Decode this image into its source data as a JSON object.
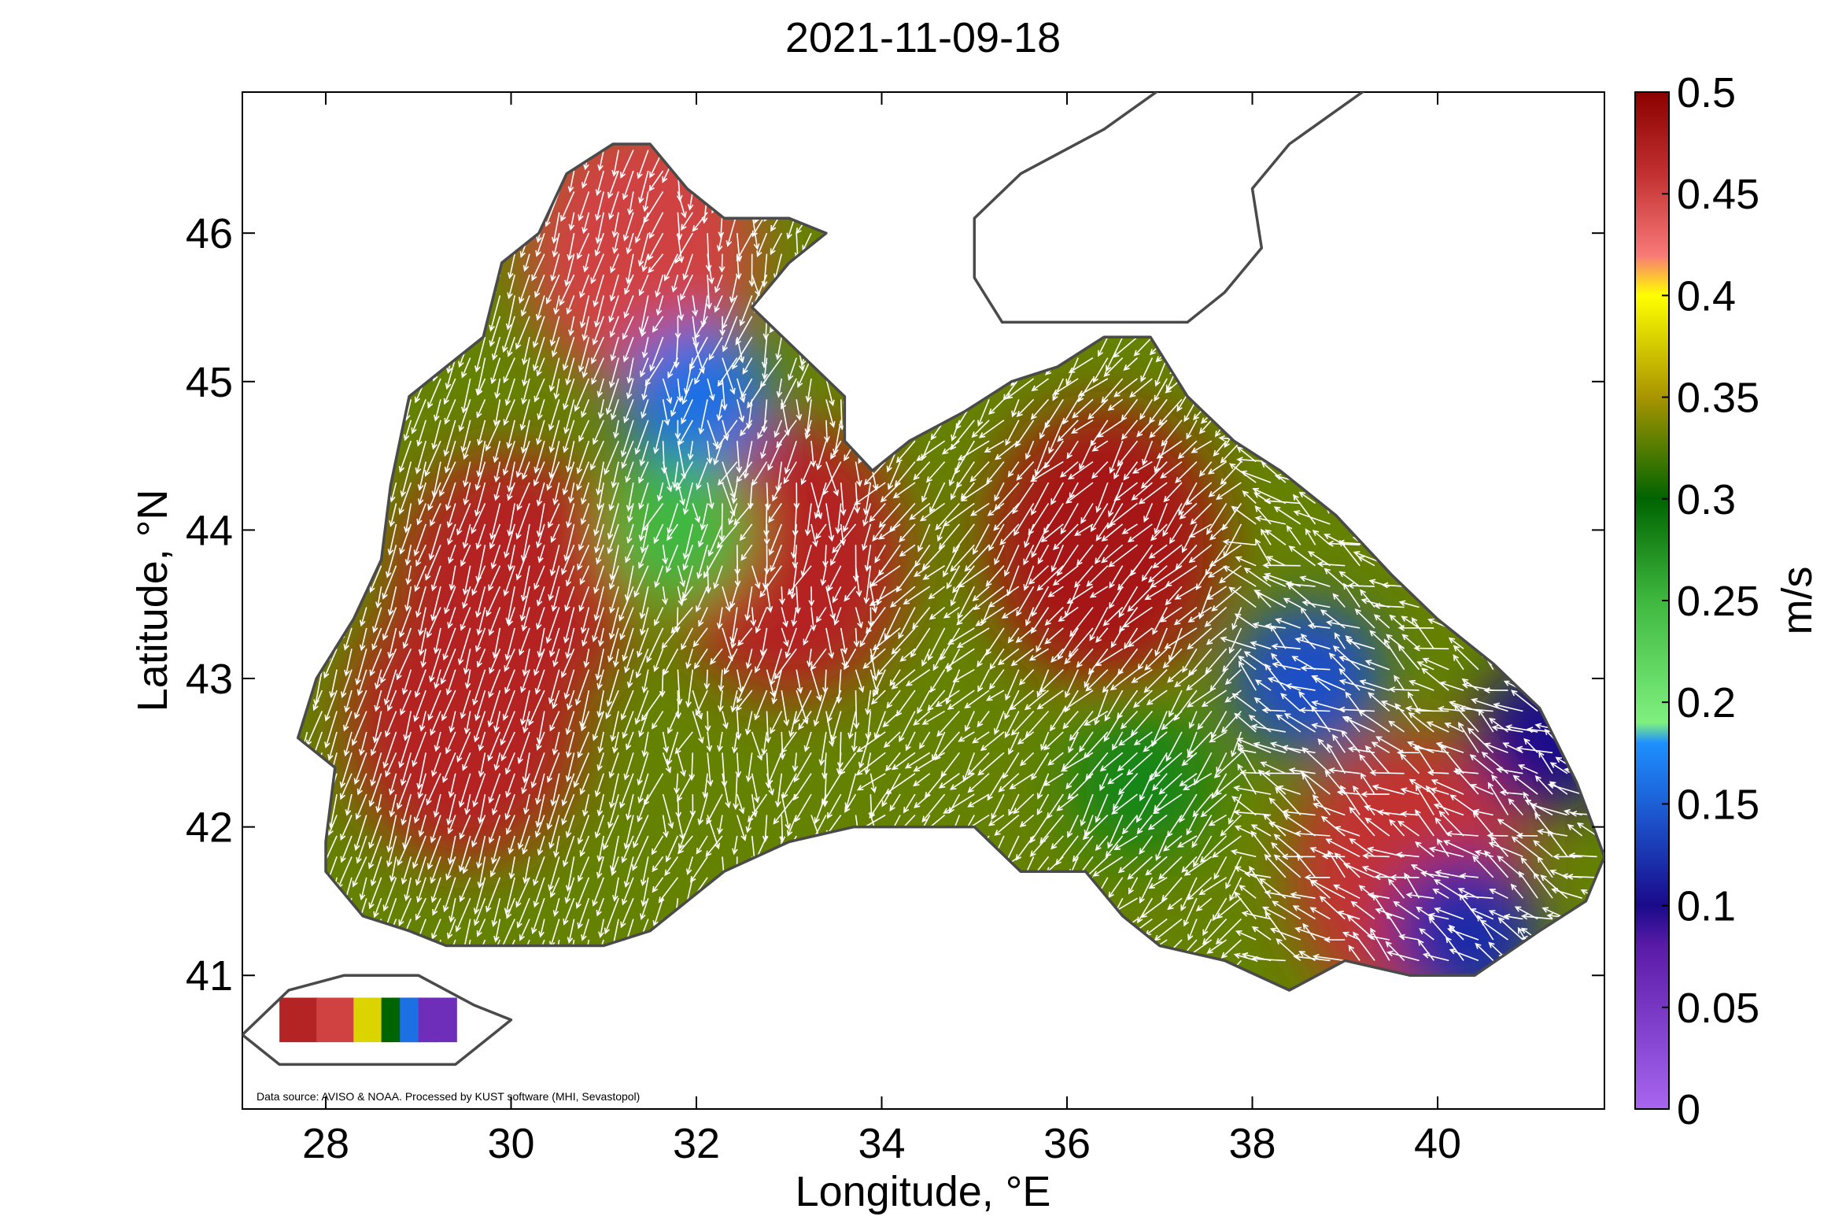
{
  "title": "2021-11-09-18",
  "xlabel": "Longitude, °E",
  "ylabel": "Latitude, °N",
  "source_note": "Data source: AVISO & NOAA. Processed by KUST software (MHI, Sevastopol)",
  "axes": {
    "x_ticks": [
      "28",
      "30",
      "32",
      "34",
      "36",
      "38",
      "40"
    ],
    "y_ticks": [
      "46",
      "45",
      "44",
      "43",
      "42",
      "41"
    ],
    "x_range": [
      27.1,
      41.8
    ],
    "y_range": [
      40.1,
      46.95
    ]
  },
  "colorbar": {
    "unit_label": "m/s",
    "ticks": [
      "0.5",
      "0.45",
      "0.4",
      "0.35",
      "0.3",
      "0.25",
      "0.2",
      "0.15",
      "0.1",
      "0.05",
      "0"
    ],
    "range": [
      0,
      0.5
    ],
    "stops": [
      {
        "v": 0.0,
        "c": "#a866f0"
      },
      {
        "v": 0.08,
        "c": "#5a1ba8"
      },
      {
        "v": 0.1,
        "c": "#1a0a8a"
      },
      {
        "v": 0.15,
        "c": "#1c5fd6"
      },
      {
        "v": 0.18,
        "c": "#1e90ff"
      },
      {
        "v": 0.19,
        "c": "#7ff07f"
      },
      {
        "v": 0.25,
        "c": "#3fb83f"
      },
      {
        "v": 0.3,
        "c": "#006400"
      },
      {
        "v": 0.35,
        "c": "#a89400"
      },
      {
        "v": 0.4,
        "c": "#ffff00"
      },
      {
        "v": 0.42,
        "c": "#f87878"
      },
      {
        "v": 0.46,
        "c": "#c23030"
      },
      {
        "v": 0.5,
        "c": "#8b0000"
      }
    ]
  },
  "map": {
    "region": "Black Sea",
    "field": "surface current speed (m/s) with velocity vectors",
    "speed_zones": [
      {
        "lon": 30.0,
        "lat": 43.6,
        "speed": 0.47
      },
      {
        "lon": 29.5,
        "lat": 42.7,
        "speed": 0.47
      },
      {
        "lon": 31.4,
        "lat": 45.9,
        "speed": 0.45
      },
      {
        "lon": 33.0,
        "lat": 43.8,
        "speed": 0.47
      },
      {
        "lon": 36.4,
        "lat": 43.9,
        "speed": 0.48
      },
      {
        "lon": 39.7,
        "lat": 41.7,
        "speed": 0.46
      },
      {
        "lon": 32.0,
        "lat": 44.9,
        "speed": 0.16
      },
      {
        "lon": 38.6,
        "lat": 43.0,
        "speed": 0.14
      },
      {
        "lon": 41.2,
        "lat": 42.6,
        "speed": 0.1
      },
      {
        "lon": 40.3,
        "lat": 41.3,
        "speed": 0.12
      },
      {
        "lon": 31.8,
        "lat": 44.0,
        "speed": 0.25
      },
      {
        "lon": 36.8,
        "lat": 42.3,
        "speed": 0.28
      }
    ]
  }
}
